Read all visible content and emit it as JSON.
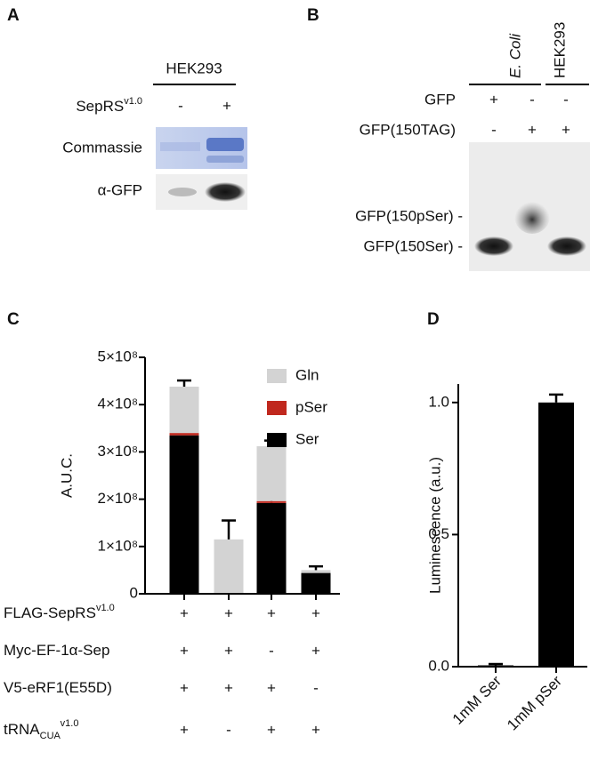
{
  "panel_labels": [
    "A",
    "B",
    "C",
    "D"
  ],
  "panel_a": {
    "title": "HEK293",
    "rows": [
      {
        "label": "SepRS",
        "sup": "v1.0",
        "marks": [
          "-",
          "+"
        ]
      },
      {
        "label": "Commassie"
      },
      {
        "label": "α-GFP"
      }
    ]
  },
  "panel_b": {
    "lanes": [
      "E. Coli",
      "HEK293"
    ],
    "rows": [
      {
        "label": "GFP",
        "marks": [
          "+",
          "-",
          "-"
        ]
      },
      {
        "label": "GFP(150TAG)",
        "marks": [
          "-",
          "+",
          "+"
        ]
      }
    ],
    "band_labels": [
      "GFP(150pSer) -",
      "GFP(150Ser) -"
    ]
  },
  "chart_data": [
    {
      "type": "bar",
      "stacked": true,
      "ylabel": "A.U.C.",
      "categories": [
        null,
        null,
        null,
        null
      ],
      "series": [
        {
          "name": "Ser",
          "color": "#000000",
          "values": [
            335000000,
            2000000,
            192000000,
            44000000
          ],
          "errors": [
            null,
            null,
            22000000,
            null
          ]
        },
        {
          "name": "pSer",
          "color": "#c0281e",
          "values": [
            5000000,
            0,
            4000000,
            0
          ],
          "errors": [
            null,
            null,
            null,
            null
          ]
        },
        {
          "name": "Gln",
          "color": "#d3d3d3",
          "values": [
            98000000,
            113000000,
            116000000,
            6000000
          ],
          "errors": [
            13000000,
            40000000,
            12000000,
            8000000
          ]
        }
      ],
      "ylim": [
        0,
        500000000
      ],
      "yticks": [
        0,
        {
          "value": 100000000,
          "label": "1×10⁸"
        },
        {
          "value": 200000000,
          "label": "2×10⁸"
        },
        {
          "value": 300000000,
          "label": "3×10⁸"
        },
        {
          "value": 400000000,
          "label": "4×10⁸"
        },
        {
          "value": 500000000,
          "label": "5×10⁸"
        }
      ],
      "legend": "upper right",
      "conditions": [
        {
          "label": "FLAG-SepRS",
          "sup": "v1.0",
          "marks": [
            "+",
            "+",
            "+",
            "+"
          ]
        },
        {
          "label": "Myc-EF-1α-Sep",
          "marks": [
            "+",
            "+",
            "-",
            "+"
          ]
        },
        {
          "label": "V5-eRF1(E55D)",
          "marks": [
            "+",
            "+",
            "+",
            "-"
          ]
        },
        {
          "label": "tRNA",
          "sub": "CUA",
          "sup": "v1.0",
          "marks": [
            "+",
            "-",
            "+",
            "+"
          ]
        }
      ]
    },
    {
      "type": "bar",
      "ylabel": "Luminescence (a.u.)",
      "categories": [
        "1mM Ser",
        "1mM pSer"
      ],
      "values": [
        0.005,
        1.0
      ],
      "errors": [
        0.005,
        0.03
      ],
      "color": "#000000",
      "ylim": [
        0,
        1.07
      ],
      "yticks": [
        {
          "value": 0,
          "label": "0.0"
        },
        {
          "value": 0.5,
          "label": "0.5"
        },
        {
          "value": 1,
          "label": "1.0"
        }
      ]
    }
  ]
}
